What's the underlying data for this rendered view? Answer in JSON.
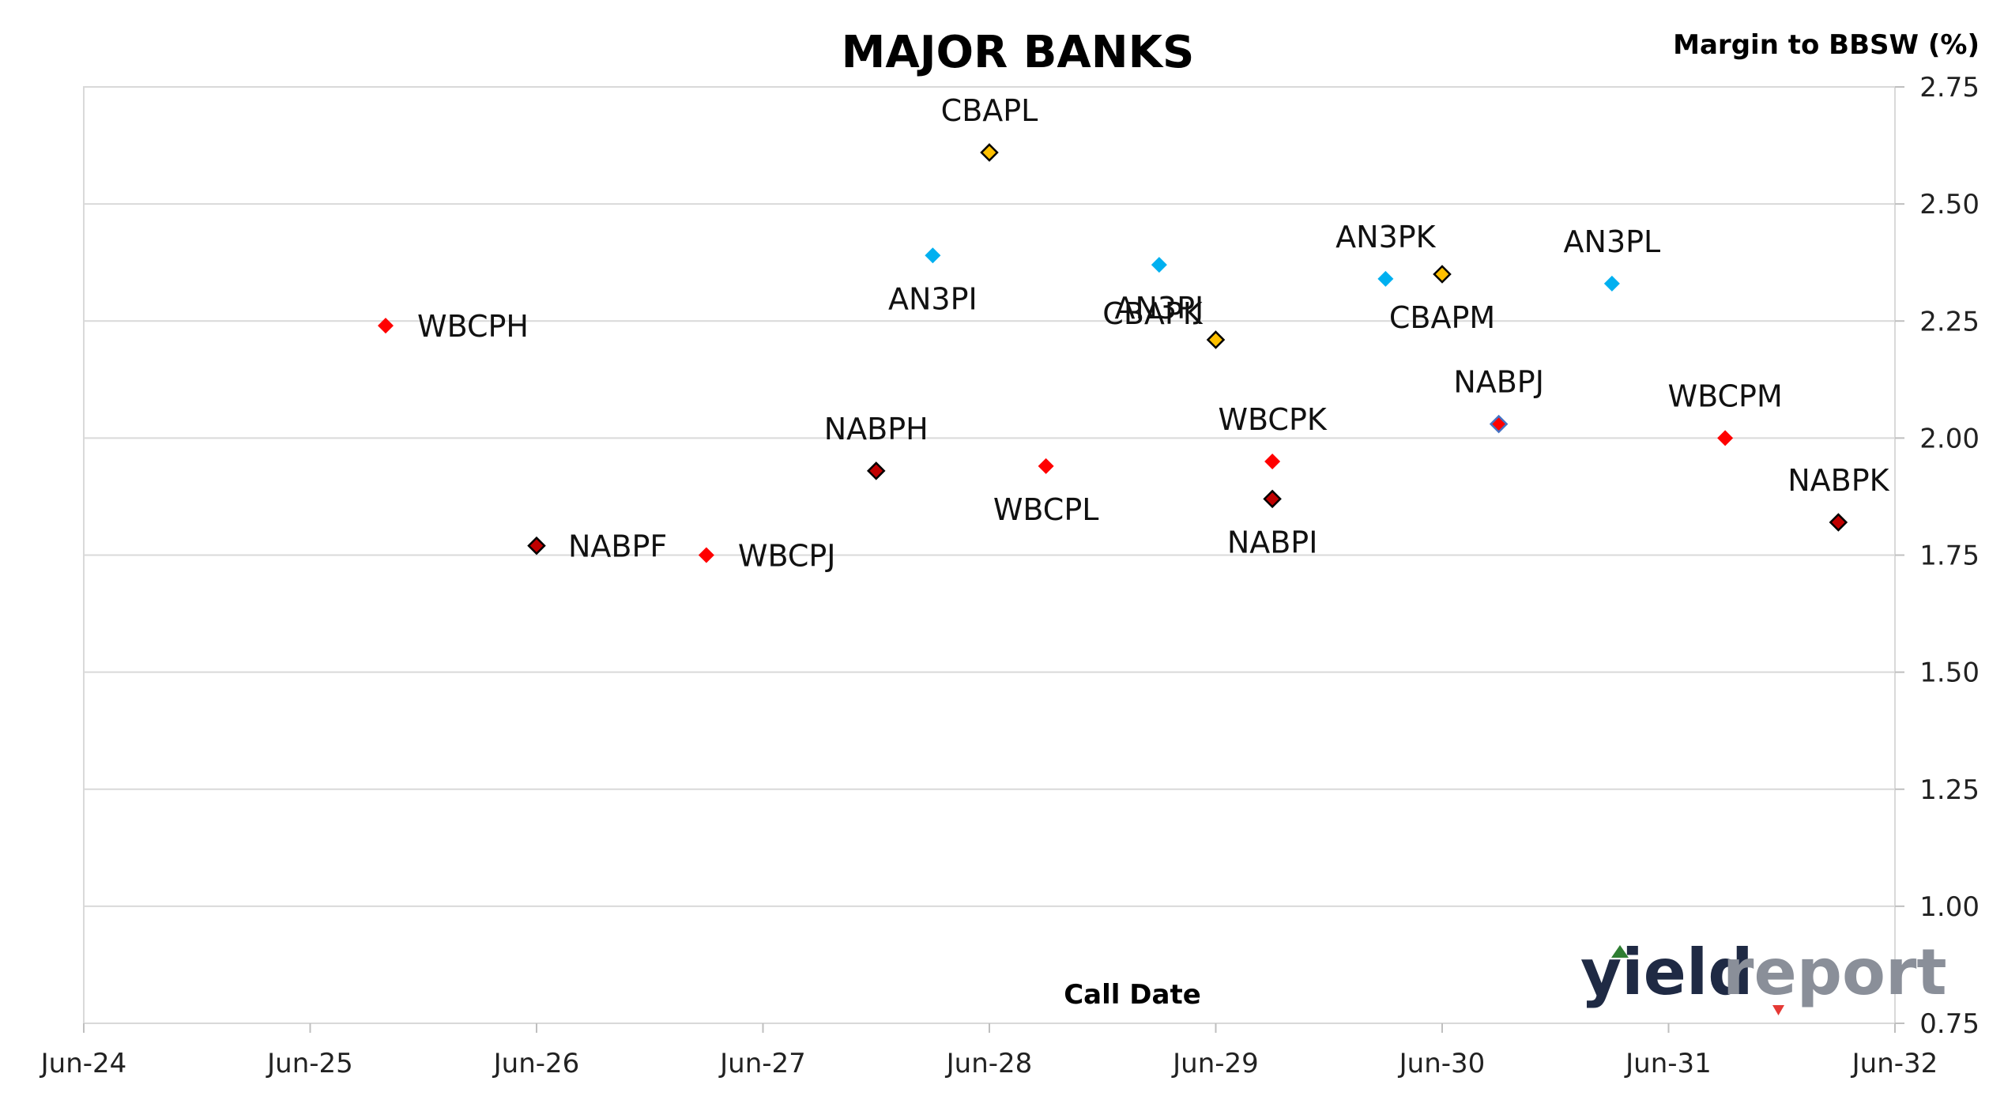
{
  "chart_data": {
    "type": "scatter",
    "title": "MAJOR BANKS",
    "xlabel": "Call Date",
    "ylabel": "Margin to BBSW (%)",
    "x_range": [
      "2024-06",
      "2032-06"
    ],
    "x_ticks": [
      "Jun-24",
      "Jun-25",
      "Jun-26",
      "Jun-27",
      "Jun-28",
      "Jun-29",
      "Jun-30",
      "Jun-31",
      "Jun-32"
    ],
    "ylim": [
      0.75,
      2.75
    ],
    "y_ticks": [
      "0.75",
      "1.00",
      "1.25",
      "1.50",
      "1.75",
      "2.00",
      "2.25",
      "2.50",
      "2.75"
    ],
    "y_axis_position": "right",
    "grid": "horizontal",
    "colors": {
      "WBC": "#ff0000",
      "NAB": "#c00000",
      "ANZ": "#00b0f0",
      "CBA": "#ffc000",
      "NAB_outline": "#000000",
      "gridline": "#d9d9d9"
    },
    "points": [
      {
        "label": "WBCPH",
        "x": "2025-10",
        "y": 2.24,
        "color": "#ff0000",
        "outline": "none",
        "label_pos": "right"
      },
      {
        "label": "NABPF",
        "x": "2026-06",
        "y": 1.77,
        "color": "#c00000",
        "outline": "#000000",
        "label_pos": "right"
      },
      {
        "label": "WBCPJ",
        "x": "2027-03",
        "y": 1.75,
        "color": "#ff0000",
        "outline": "none",
        "label_pos": "right"
      },
      {
        "label": "NABPH",
        "x": "2027-12",
        "y": 1.93,
        "color": "#c00000",
        "outline": "#000000",
        "label_pos": "above"
      },
      {
        "label": "AN3PI",
        "x": "2028-03",
        "y": 2.39,
        "color": "#00b0f0",
        "outline": "none",
        "label_pos": "below"
      },
      {
        "label": "CBAPL",
        "x": "2028-06",
        "y": 2.61,
        "color": "#ffc000",
        "outline": "#000000",
        "label_pos": "above"
      },
      {
        "label": "WBCPL",
        "x": "2028-09",
        "y": 1.94,
        "color": "#ff0000",
        "outline": "none",
        "label_pos": "below"
      },
      {
        "label": "AN3PJ",
        "x": "2029-03",
        "y": 2.37,
        "color": "#00b0f0",
        "outline": "none",
        "label_pos": "below"
      },
      {
        "label": "CBAPK",
        "x": "2029-06",
        "y": 2.21,
        "color": "#ffc000",
        "outline": "#000000",
        "label_pos": "above-left"
      },
      {
        "label": "WBCPK",
        "x": "2029-09",
        "y": 1.95,
        "color": "#ff0000",
        "outline": "none",
        "label_pos": "above"
      },
      {
        "label": "NABPI",
        "x": "2029-09",
        "y": 1.87,
        "color": "#c00000",
        "outline": "#000000",
        "label_pos": "below"
      },
      {
        "label": "AN3PK",
        "x": "2030-03",
        "y": 2.34,
        "color": "#00b0f0",
        "outline": "none",
        "label_pos": "above"
      },
      {
        "label": "CBAPM",
        "x": "2030-06",
        "y": 2.35,
        "color": "#ffc000",
        "outline": "#000000",
        "label_pos": "below"
      },
      {
        "label": "NABPJ",
        "x": "2030-09",
        "y": 2.03,
        "color": "#ff0000",
        "outline": "#4472c4",
        "label_pos": "above"
      },
      {
        "label": "AN3PL",
        "x": "2031-03",
        "y": 2.33,
        "color": "#00b0f0",
        "outline": "none",
        "label_pos": "above"
      },
      {
        "label": "WBCPM",
        "x": "2031-09",
        "y": 2.0,
        "color": "#ff0000",
        "outline": "none",
        "label_pos": "above"
      },
      {
        "label": "NABPK",
        "x": "2032-03",
        "y": 1.82,
        "color": "#c00000",
        "outline": "#000000",
        "label_pos": "above"
      }
    ]
  },
  "watermark": {
    "text_a": "yield",
    "text_b": "report",
    "color_a": "#1f2a44",
    "color_b": "#8a8f99",
    "up_color": "#2e7d32",
    "down_color": "#e53935"
  }
}
